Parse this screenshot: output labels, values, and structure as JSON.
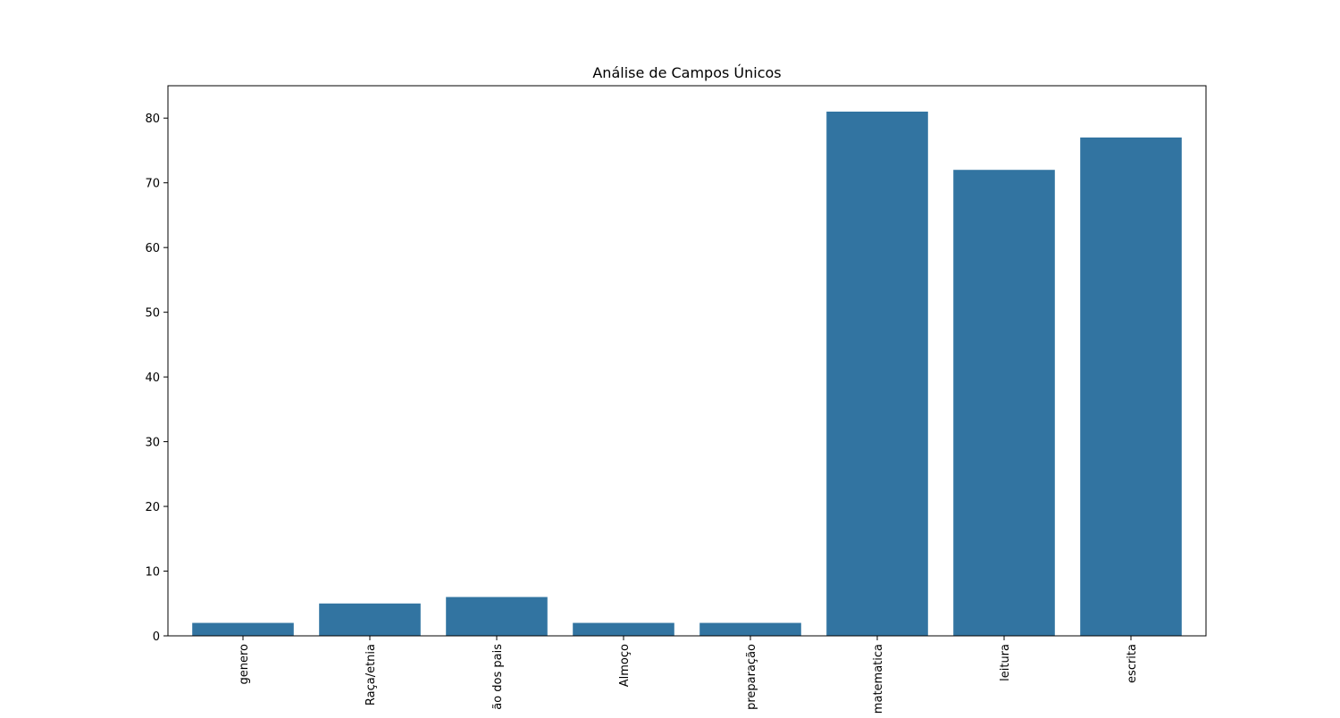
{
  "chart_data": {
    "type": "bar",
    "title": "Análise de Campos Únicos",
    "xlabel": "",
    "ylabel": "",
    "categories": [
      "genero",
      "Raça/etnia",
      "ão dos pais",
      "Almoço",
      "preparação",
      "matematica",
      "leitura",
      "escrita"
    ],
    "values": [
      2,
      5,
      6,
      2,
      2,
      81,
      72,
      77
    ],
    "ylim": [
      0,
      85
    ],
    "yticks": [
      0,
      10,
      20,
      30,
      40,
      50,
      60,
      70,
      80
    ],
    "grid": false,
    "legend": "none",
    "bar_color": "#3274a1"
  }
}
